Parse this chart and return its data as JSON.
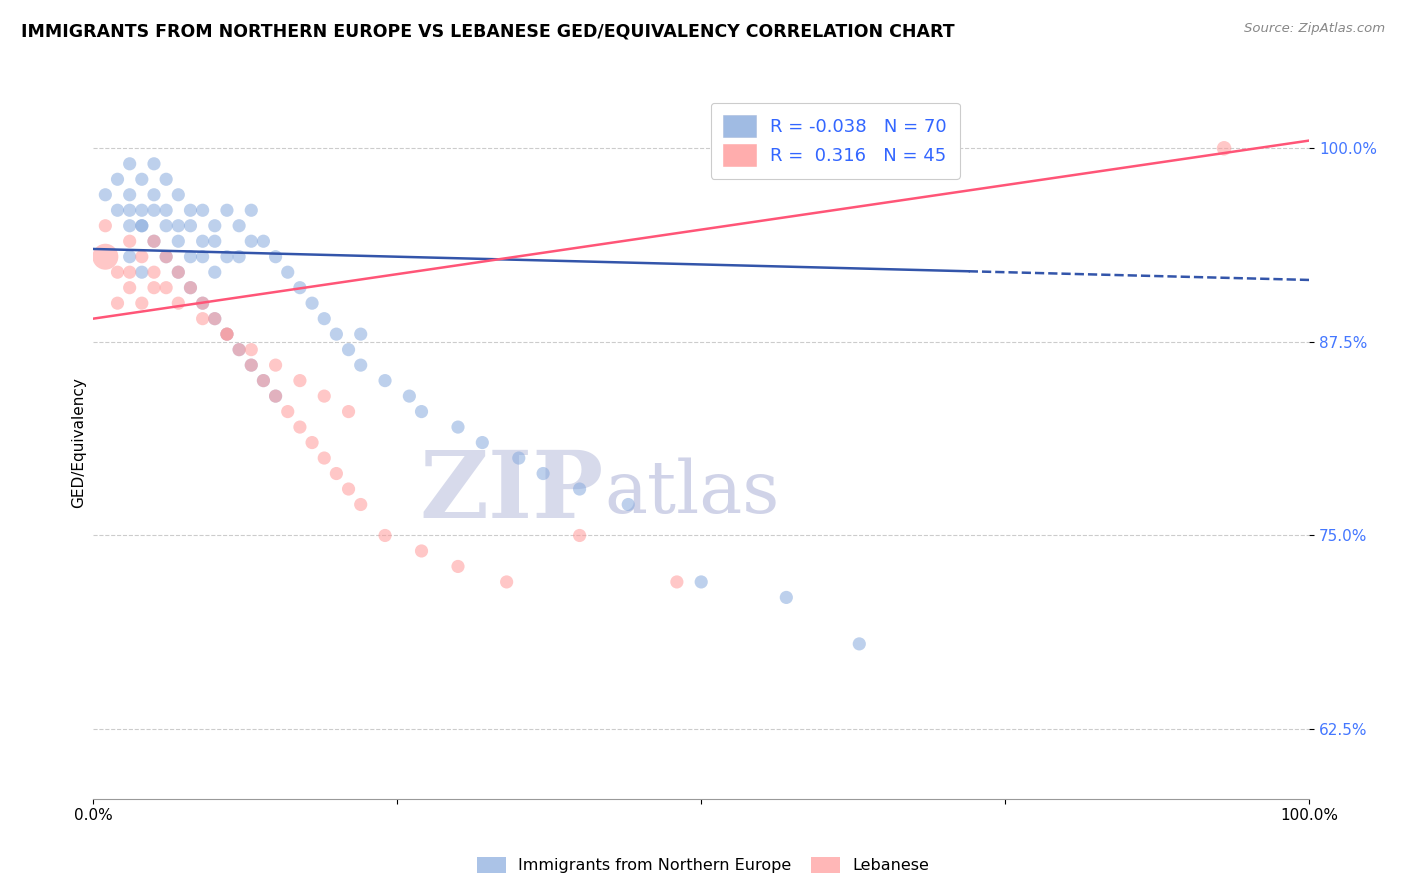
{
  "title": "IMMIGRANTS FROM NORTHERN EUROPE VS LEBANESE GED/EQUIVALENCY CORRELATION CHART",
  "source": "Source: ZipAtlas.com",
  "ylabel": "GED/Equivalency",
  "xlim": [
    0.0,
    100.0
  ],
  "ylim": [
    58.0,
    104.0
  ],
  "yticks": [
    62.5,
    75.0,
    87.5,
    100.0
  ],
  "ytick_labels": [
    "62.5%",
    "75.0%",
    "87.5%",
    "100.0%"
  ],
  "blue_R": -0.038,
  "blue_N": 70,
  "pink_R": 0.316,
  "pink_N": 45,
  "blue_color": "#88AADD",
  "pink_color": "#FF9999",
  "blue_line_color": "#3355AA",
  "pink_line_color": "#FF5577",
  "watermark": "ZIPatlas",
  "watermark_color": "#D8DCF0",
  "legend_blue_label": "Immigrants from Northern Europe",
  "legend_pink_label": "Lebanese",
  "blue_line_x0": 0,
  "blue_line_x1": 100,
  "blue_line_y0": 93.5,
  "blue_line_y1": 91.5,
  "blue_solid_end": 72,
  "pink_line_x0": 0,
  "pink_line_x1": 100,
  "pink_line_y0": 89.0,
  "pink_line_y1": 100.5,
  "blue_pts_x": [
    1,
    2,
    2,
    3,
    3,
    3,
    4,
    4,
    4,
    5,
    5,
    5,
    6,
    6,
    6,
    7,
    7,
    7,
    8,
    8,
    8,
    9,
    9,
    9,
    10,
    10,
    10,
    11,
    11,
    12,
    12,
    13,
    13,
    14,
    15,
    16,
    17,
    18,
    19,
    20,
    21,
    22,
    22,
    24,
    26,
    27,
    30,
    32,
    35,
    37,
    40,
    44,
    50,
    57,
    63,
    3,
    4,
    5,
    6,
    7,
    8,
    9,
    10,
    11,
    12,
    13,
    14,
    15,
    3,
    4
  ],
  "blue_pts_y": [
    97,
    98,
    96,
    99,
    97,
    95,
    98,
    96,
    95,
    99,
    97,
    96,
    98,
    96,
    95,
    97,
    95,
    94,
    96,
    95,
    93,
    96,
    94,
    93,
    95,
    94,
    92,
    96,
    93,
    95,
    93,
    96,
    94,
    94,
    93,
    92,
    91,
    90,
    89,
    88,
    87,
    86,
    88,
    85,
    84,
    83,
    82,
    81,
    80,
    79,
    78,
    77,
    72,
    71,
    68,
    96,
    95,
    94,
    93,
    92,
    91,
    90,
    89,
    88,
    87,
    86,
    85,
    84,
    93,
    92
  ],
  "blue_pts_sizes": [
    90,
    90,
    90,
    90,
    90,
    90,
    90,
    90,
    90,
    90,
    90,
    90,
    90,
    90,
    90,
    90,
    90,
    90,
    90,
    90,
    90,
    90,
    90,
    90,
    90,
    90,
    90,
    90,
    90,
    90,
    90,
    90,
    90,
    90,
    90,
    90,
    90,
    90,
    90,
    90,
    90,
    90,
    90,
    90,
    90,
    90,
    90,
    90,
    90,
    90,
    90,
    90,
    90,
    90,
    90,
    90,
    90,
    90,
    90,
    90,
    90,
    90,
    90,
    90,
    90,
    90,
    90,
    90,
    90,
    90
  ],
  "pink_pts_x": [
    1,
    2,
    2,
    3,
    3,
    4,
    4,
    5,
    5,
    6,
    6,
    7,
    8,
    9,
    10,
    11,
    12,
    13,
    14,
    15,
    16,
    17,
    18,
    19,
    20,
    21,
    22,
    24,
    27,
    30,
    34,
    40,
    48,
    93,
    1,
    3,
    5,
    7,
    9,
    11,
    13,
    15,
    17,
    19,
    21
  ],
  "pink_pts_y": [
    93,
    92,
    90,
    94,
    91,
    93,
    90,
    94,
    92,
    91,
    93,
    92,
    91,
    90,
    89,
    88,
    87,
    86,
    85,
    84,
    83,
    82,
    81,
    80,
    79,
    78,
    77,
    75,
    74,
    73,
    72,
    75,
    72,
    100,
    95,
    92,
    91,
    90,
    89,
    88,
    87,
    86,
    85,
    84,
    83
  ],
  "pink_pts_sizes": [
    350,
    90,
    90,
    90,
    90,
    90,
    90,
    90,
    90,
    90,
    90,
    90,
    90,
    90,
    90,
    90,
    90,
    90,
    90,
    90,
    90,
    90,
    90,
    90,
    90,
    90,
    90,
    90,
    90,
    90,
    90,
    90,
    90,
    110,
    90,
    90,
    90,
    90,
    90,
    90,
    90,
    90,
    90,
    90,
    90
  ]
}
